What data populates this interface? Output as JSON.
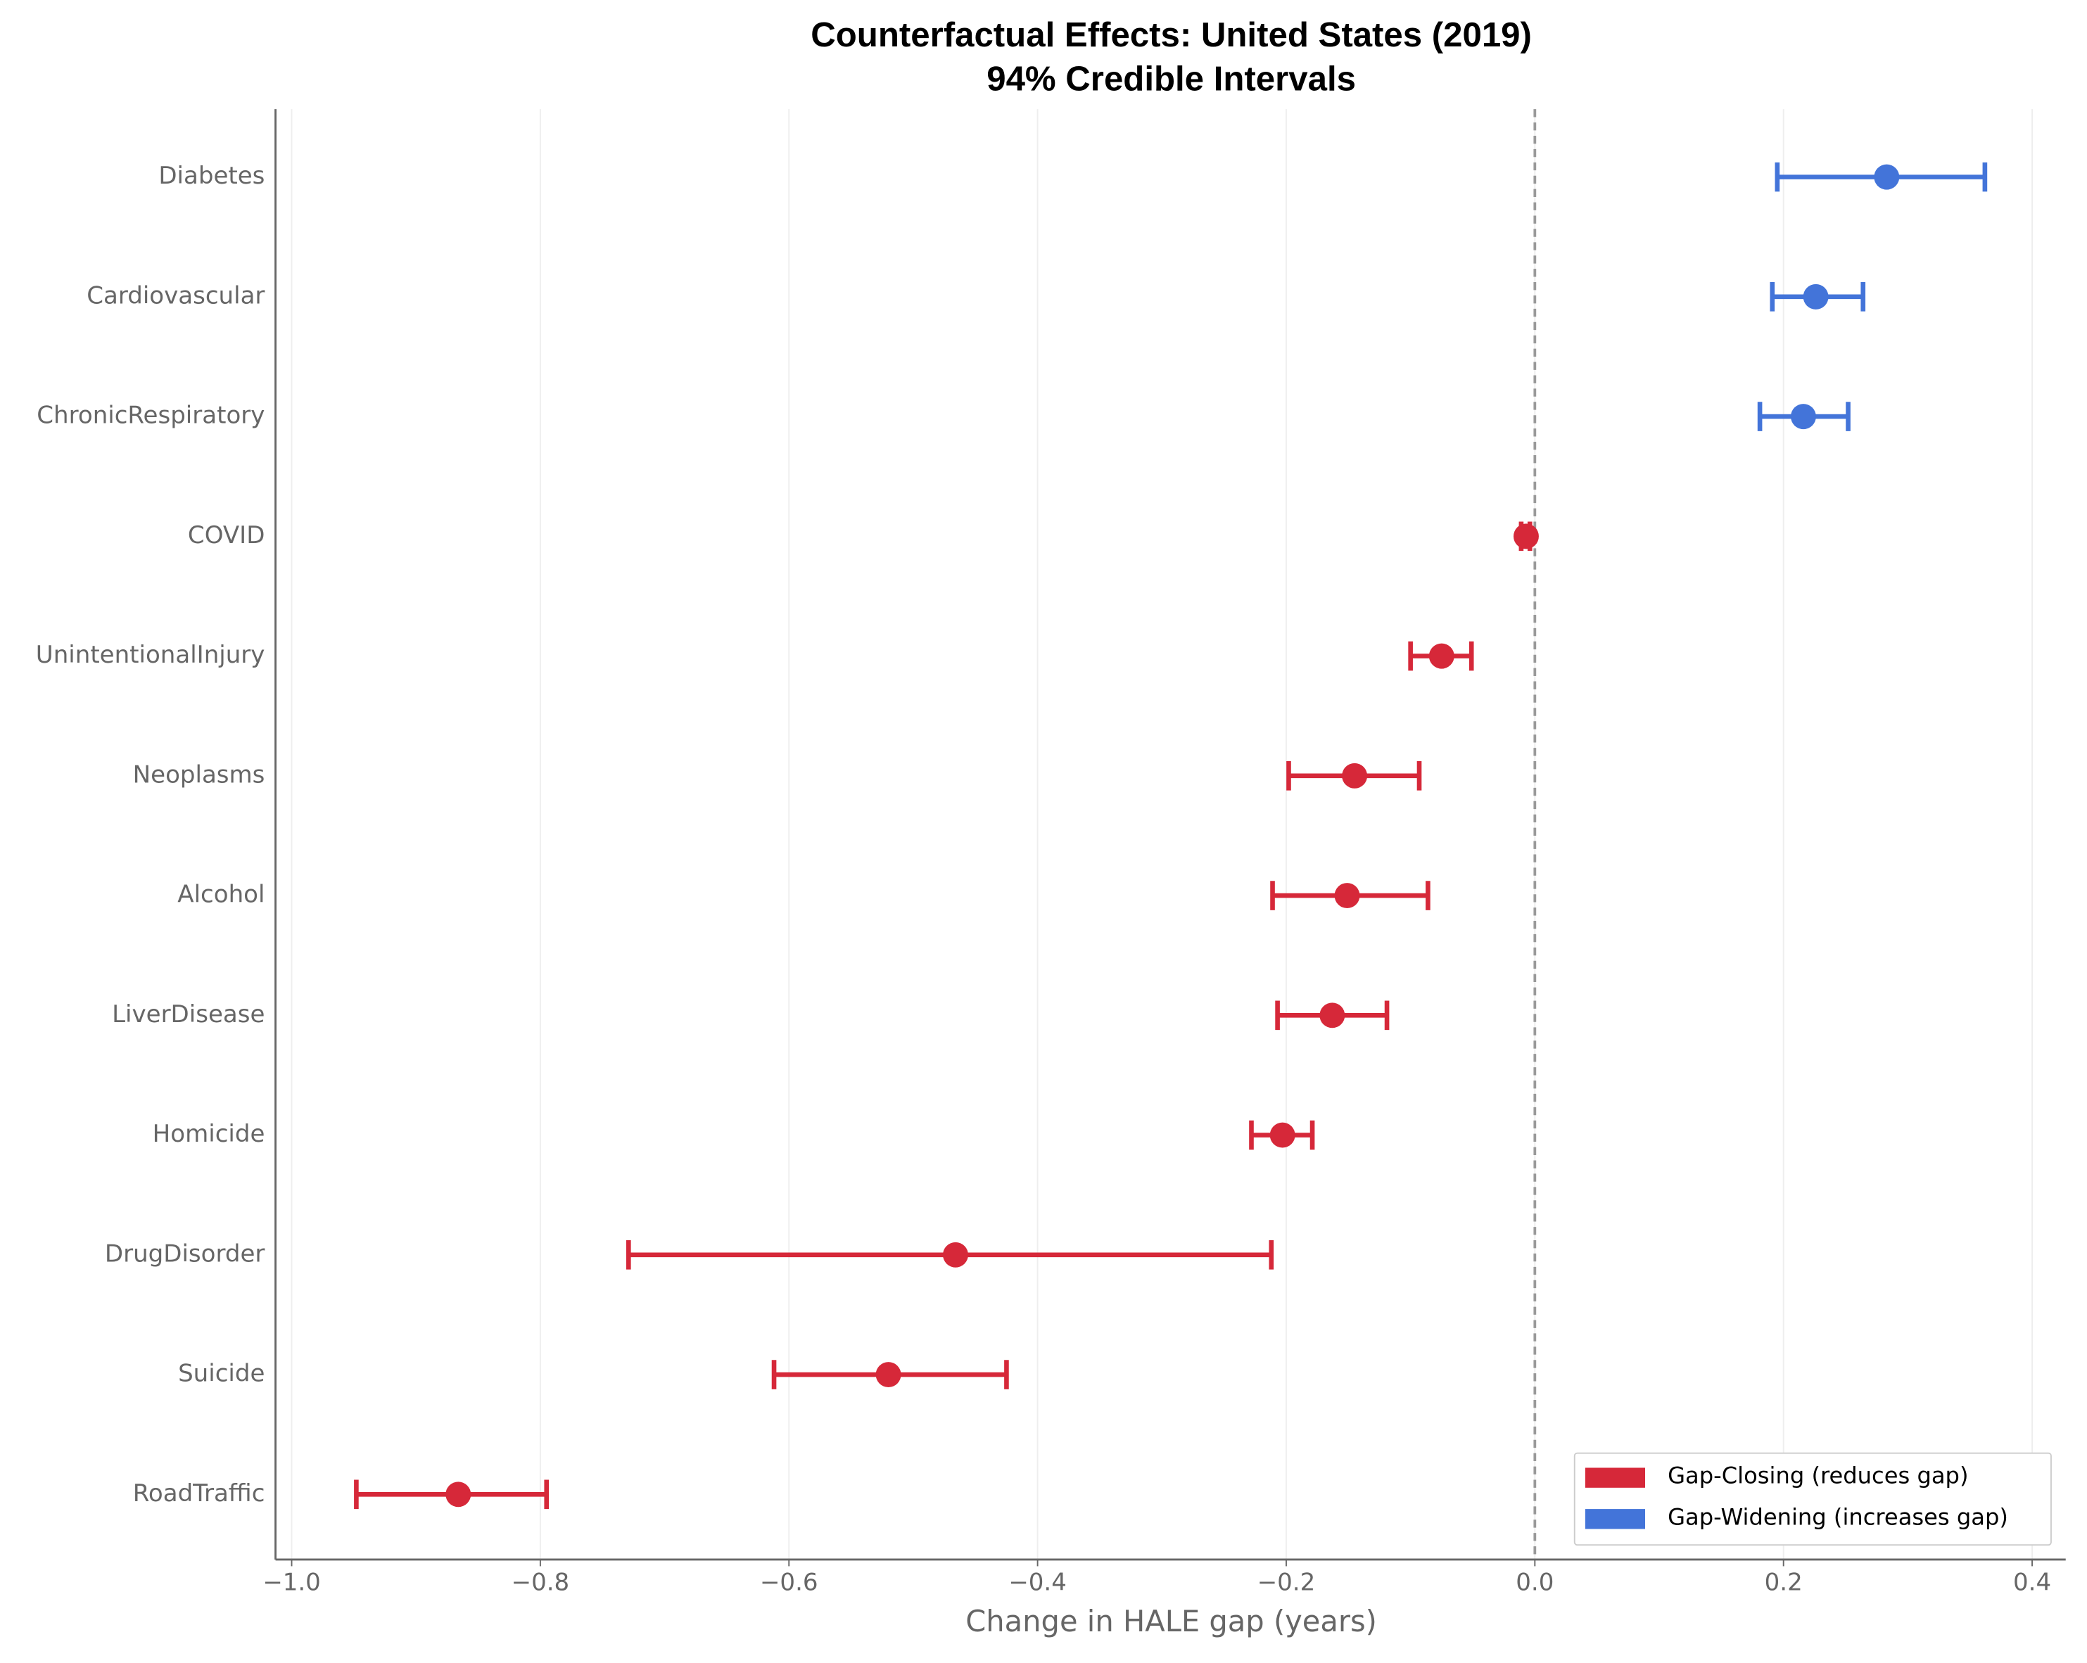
{
  "chart_data": {
    "type": "errorbar",
    "title": [
      "Counterfactual Effects: United States (2019)",
      "94% Credible Intervals"
    ],
    "xlabel": "Change in HALE gap (years)",
    "categories": [
      "Diabetes",
      "Cardiovascular",
      "ChronicRespiratory",
      "COVID",
      "UnintentionalInjury",
      "Neoplasms",
      "Alcohol",
      "LiverDisease",
      "Homicide",
      "DrugDisorder",
      "Suicide",
      "RoadTraffic"
    ],
    "series": [
      {
        "name": "Gap-Closing (reduces gap)",
        "color": "#d62839",
        "values": [
          null,
          null,
          null,
          -0.007,
          -0.075,
          -0.145,
          -0.151,
          -0.163,
          -0.203,
          -0.466,
          -0.52,
          -0.866
        ],
        "lower": [
          null,
          null,
          null,
          -0.011,
          -0.1,
          -0.198,
          -0.211,
          -0.207,
          -0.228,
          -0.729,
          -0.612,
          -0.948
        ],
        "upper": [
          null,
          null,
          null,
          -0.004,
          -0.051,
          -0.093,
          -0.086,
          -0.119,
          -0.179,
          -0.212,
          -0.425,
          -0.795
        ]
      },
      {
        "name": "Gap-Widening (increases gap)",
        "color": "#4374d9",
        "values": [
          0.283,
          0.226,
          0.216,
          null,
          null,
          null,
          null,
          null,
          null,
          null,
          null,
          null
        ],
        "lower": [
          0.195,
          0.191,
          0.181,
          null,
          null,
          null,
          null,
          null,
          null,
          null,
          null,
          null
        ],
        "upper": [
          0.362,
          0.264,
          0.252,
          null,
          null,
          null,
          null,
          null,
          null,
          null,
          null,
          null
        ]
      }
    ],
    "xlim": [
      -1.013,
      0.427
    ],
    "xticks": [
      {
        "value": -1.0,
        "label": "−1.0"
      },
      {
        "value": -0.8,
        "label": "−0.8"
      },
      {
        "value": -0.6,
        "label": "−0.6"
      },
      {
        "value": -0.4,
        "label": "−0.4"
      },
      {
        "value": -0.2,
        "label": "−0.2"
      },
      {
        "value": 0.0,
        "label": "0.0"
      },
      {
        "value": 0.2,
        "label": "0.2"
      },
      {
        "value": 0.4,
        "label": "0.4"
      }
    ],
    "reference_line": 0,
    "grid": true,
    "legend_position": "lower right"
  }
}
